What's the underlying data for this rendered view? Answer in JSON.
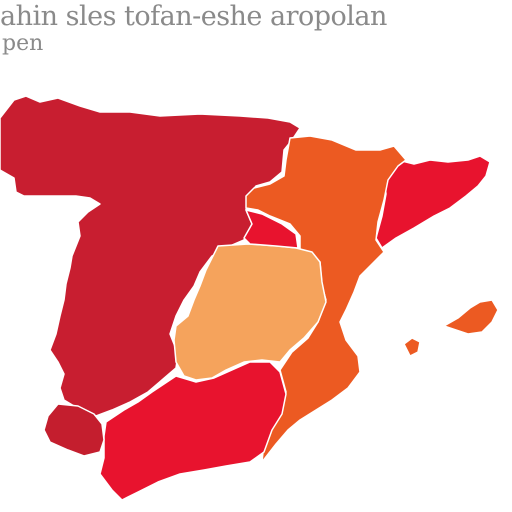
{
  "map": {
    "title": "ahin sles tofan-eshe aropolan",
    "subtitle": "pen",
    "regions": [
      {
        "id": "northwest-west",
        "color": "#c81e30"
      },
      {
        "id": "northeast-coast",
        "color": "#e8132e"
      },
      {
        "id": "east-coast",
        "color": "#ec5a22"
      },
      {
        "id": "center",
        "color": "#f5a35c"
      },
      {
        "id": "south",
        "color": "#e8132e"
      },
      {
        "id": "southwest",
        "color": "#c41e2e"
      },
      {
        "id": "center-north",
        "color": "#e8132e"
      },
      {
        "id": "balearic-islands",
        "color": "#ec5a22"
      }
    ]
  }
}
